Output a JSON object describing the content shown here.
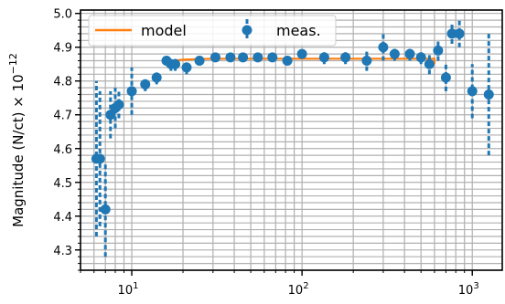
{
  "chart_data": {
    "type": "scatter",
    "title": "",
    "xlabel": "",
    "ylabel": "Magnitude (N/ct) × 10",
    "ylabel_exponent": "−12",
    "x_scale": "log",
    "xlim": [
      5,
      1500
    ],
    "ylim": [
      4.24,
      5.01
    ],
    "grid": true,
    "legend_position": "top-left",
    "x_ticks": [
      {
        "value": 10,
        "base": "10",
        "exp": "1"
      },
      {
        "value": 100,
        "base": "10",
        "exp": "2"
      },
      {
        "value": 1000,
        "base": "10",
        "exp": "3"
      }
    ],
    "y_ticks": [
      {
        "value": 4.3,
        "label": "4.3"
      },
      {
        "value": 4.4,
        "label": "4.4"
      },
      {
        "value": 4.5,
        "label": "4.5"
      },
      {
        "value": 4.6,
        "label": "4.6"
      },
      {
        "value": 4.7,
        "label": "4.7"
      },
      {
        "value": 4.8,
        "label": "4.8"
      },
      {
        "value": 4.9,
        "label": "4.9"
      },
      {
        "value": 5.0,
        "label": "5.0"
      }
    ],
    "series": [
      {
        "name": "model",
        "kind": "line",
        "color": "#ff7f0e",
        "x": [
          17.5,
          17.5,
          20,
          25,
          30,
          100,
          600,
          600
        ],
        "y": [
          4.85,
          4.86,
          4.863,
          4.865,
          4.866,
          4.866,
          4.866,
          4.85
        ]
      },
      {
        "name": "meas.",
        "kind": "errorbar",
        "color": "#1f77b4",
        "points": [
          {
            "x": 6.2,
            "y": 4.57,
            "err": 0.23
          },
          {
            "x": 6.5,
            "y": 4.57,
            "err": 0.2
          },
          {
            "x": 7.0,
            "y": 4.42,
            "err": 0.14
          },
          {
            "x": 7.5,
            "y": 4.7,
            "err": 0.07
          },
          {
            "x": 8.0,
            "y": 4.72,
            "err": 0.06
          },
          {
            "x": 8.4,
            "y": 4.73,
            "err": 0.04
          },
          {
            "x": 10.0,
            "y": 4.77,
            "err": 0.07
          },
          {
            "x": 12.0,
            "y": 4.79,
            "err": 0.02
          },
          {
            "x": 14.0,
            "y": 4.81,
            "err": 0.02
          },
          {
            "x": 16.0,
            "y": 4.86,
            "err": 0.01
          },
          {
            "x": 17.0,
            "y": 4.85,
            "err": 0.02
          },
          {
            "x": 18.0,
            "y": 4.85,
            "err": 0.02
          },
          {
            "x": 21.0,
            "y": 4.84,
            "err": 0.02
          },
          {
            "x": 25.0,
            "y": 4.86,
            "err": 0.01
          },
          {
            "x": 31.0,
            "y": 4.87,
            "err": 0.01
          },
          {
            "x": 38.0,
            "y": 4.87,
            "err": 0.01
          },
          {
            "x": 45.0,
            "y": 4.87,
            "err": 0.01
          },
          {
            "x": 55.0,
            "y": 4.87,
            "err": 0.01
          },
          {
            "x": 67.0,
            "y": 4.87,
            "err": 0.01
          },
          {
            "x": 82.0,
            "y": 4.86,
            "err": 0.01
          },
          {
            "x": 100.0,
            "y": 4.88,
            "err": 0.01
          },
          {
            "x": 135.0,
            "y": 4.87,
            "err": 0.02
          },
          {
            "x": 180.0,
            "y": 4.87,
            "err": 0.02
          },
          {
            "x": 240.0,
            "y": 4.86,
            "err": 0.03
          },
          {
            "x": 300.0,
            "y": 4.9,
            "err": 0.04
          },
          {
            "x": 350.0,
            "y": 4.88,
            "err": 0.02
          },
          {
            "x": 430.0,
            "y": 4.88,
            "err": 0.02
          },
          {
            "x": 500.0,
            "y": 4.87,
            "err": 0.02
          },
          {
            "x": 560.0,
            "y": 4.85,
            "err": 0.03
          },
          {
            "x": 630.0,
            "y": 4.89,
            "err": 0.03
          },
          {
            "x": 700.0,
            "y": 4.81,
            "err": 0.04
          },
          {
            "x": 760.0,
            "y": 4.94,
            "err": 0.03
          },
          {
            "x": 840.0,
            "y": 4.94,
            "err": 0.04
          },
          {
            "x": 1000.0,
            "y": 4.77,
            "err": 0.08
          },
          {
            "x": 1250.0,
            "y": 4.76,
            "err": 0.18
          }
        ]
      }
    ]
  }
}
